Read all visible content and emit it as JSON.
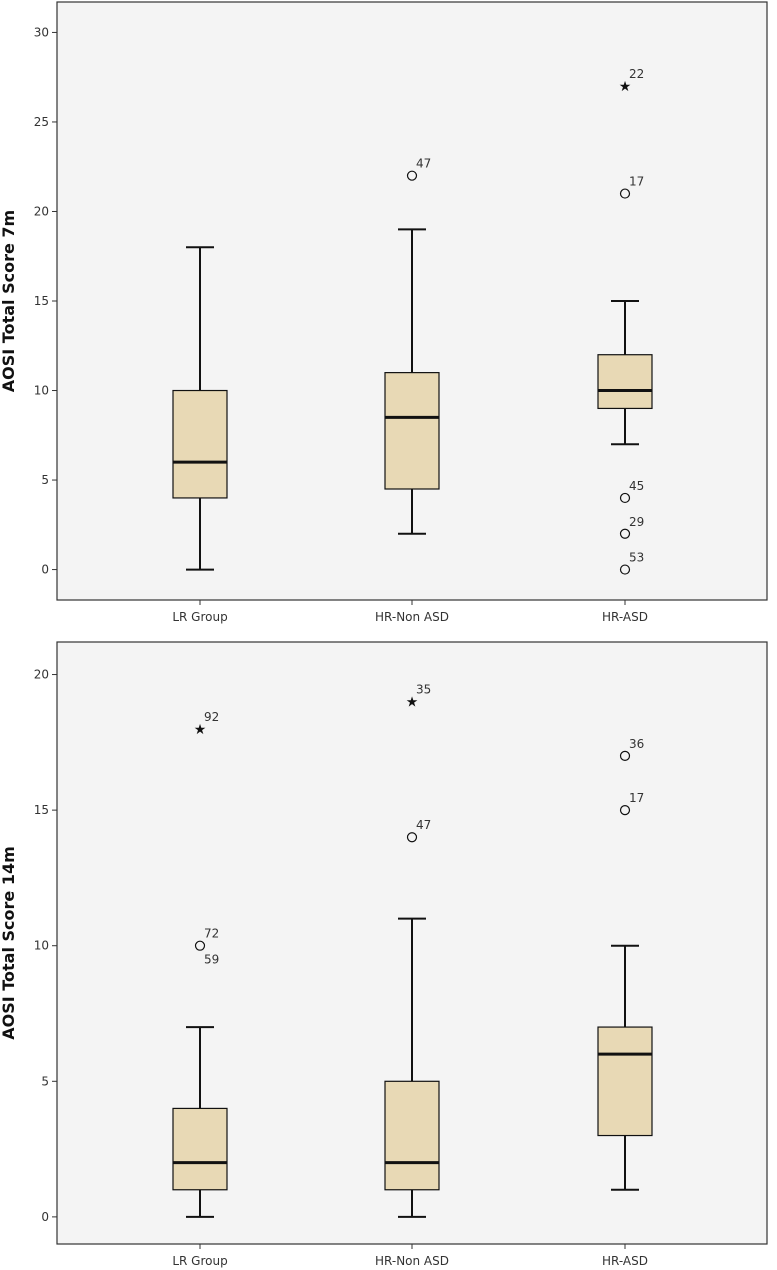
{
  "chart_data": [
    {
      "type": "boxplot",
      "ylabel": "AOSI Total Score 7m",
      "ylim": [
        -1.7,
        31.7
      ],
      "yticks": [
        0,
        5,
        10,
        15,
        20,
        25,
        30
      ],
      "ytick_labels": [
        "0",
        "5",
        "10",
        "15",
        "20",
        "25",
        "30"
      ],
      "categories": [
        "LR Group",
        "HR-Non ASD",
        "HR-ASD"
      ],
      "groups": [
        {
          "category": "LR Group",
          "whisker_low": 0,
          "q1": 4,
          "median": 6,
          "q3": 10,
          "whisker_high": 18,
          "outliers": []
        },
        {
          "category": "HR-Non ASD",
          "whisker_low": 2,
          "q1": 4.5,
          "median": 8.5,
          "q3": 11,
          "whisker_high": 19,
          "outliers": [
            {
              "value": 22,
              "label": "47",
              "marker": "circle"
            }
          ]
        },
        {
          "category": "HR-ASD",
          "whisker_low": 7,
          "q1": 9,
          "median": 10,
          "q3": 12,
          "whisker_high": 15,
          "outliers": [
            {
              "value": 27,
              "label": "22",
              "marker": "star"
            },
            {
              "value": 21,
              "label": "17",
              "marker": "circle"
            },
            {
              "value": 4,
              "label": "45",
              "marker": "circle"
            },
            {
              "value": 2,
              "label": "29",
              "marker": "circle"
            },
            {
              "value": 0,
              "label": "53",
              "marker": "circle"
            }
          ]
        }
      ]
    },
    {
      "type": "boxplot",
      "ylabel": "AOSI Total Score 14m",
      "ylim": [
        -1.0,
        21.2
      ],
      "yticks": [
        0,
        5,
        10,
        15,
        20
      ],
      "ytick_labels": [
        "0",
        "5",
        "10",
        "15",
        "20"
      ],
      "categories": [
        "LR Group",
        "HR-Non ASD",
        "HR-ASD"
      ],
      "groups": [
        {
          "category": "LR Group",
          "whisker_low": 0,
          "q1": 1,
          "median": 2,
          "q3": 4,
          "whisker_high": 7,
          "outliers": [
            {
              "value": 18,
              "label": "92",
              "marker": "star"
            },
            {
              "value": 10,
              "label": "72",
              "marker": "circle"
            },
            {
              "value": 10,
              "label": "59",
              "marker": "circle"
            }
          ]
        },
        {
          "category": "HR-Non ASD",
          "whisker_low": 0,
          "q1": 1,
          "median": 2,
          "q3": 5,
          "whisker_high": 11,
          "outliers": [
            {
              "value": 19,
              "label": "35",
              "marker": "star"
            },
            {
              "value": 14,
              "label": "47",
              "marker": "circle"
            }
          ]
        },
        {
          "category": "HR-ASD",
          "whisker_low": 1,
          "q1": 3,
          "median": 6,
          "q3": 7,
          "whisker_high": 10,
          "outliers": [
            {
              "value": 17,
              "label": "36",
              "marker": "circle"
            },
            {
              "value": 15,
              "label": "17",
              "marker": "circle"
            }
          ]
        }
      ]
    }
  ]
}
